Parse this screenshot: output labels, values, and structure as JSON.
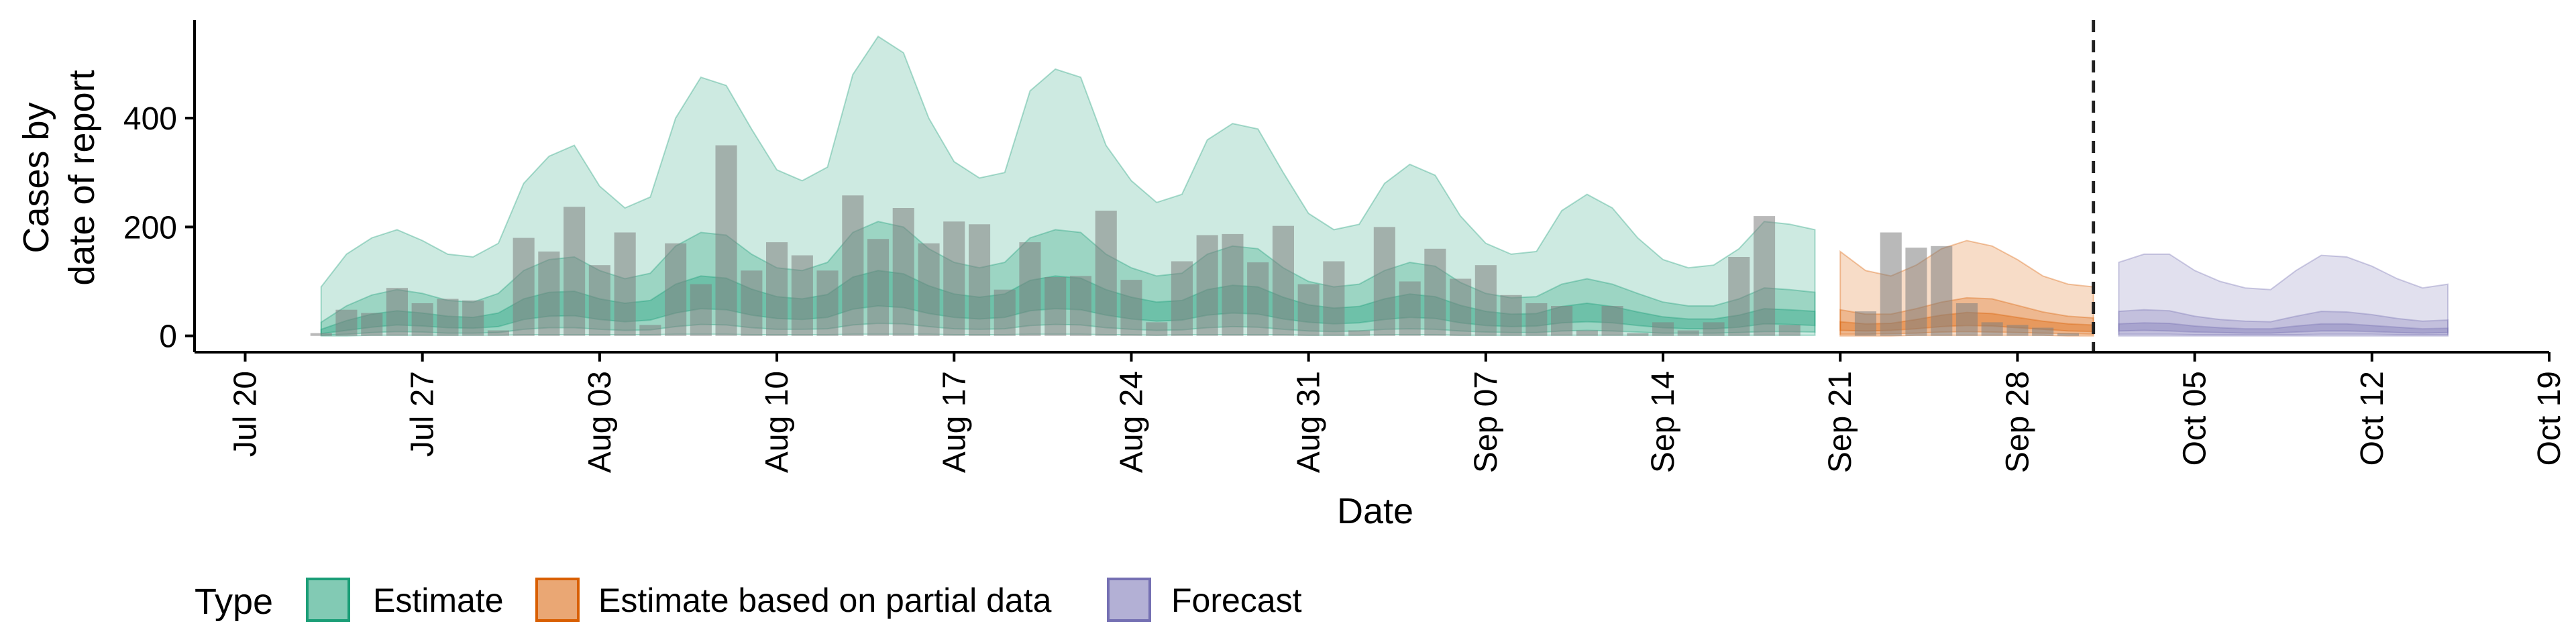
{
  "chart_data": {
    "type": "area",
    "xlabel": "Date",
    "ylabel_lines": [
      "Cases by",
      "date of report"
    ],
    "yticks": [
      0,
      200,
      400
    ],
    "ylim": [
      -30,
      580
    ],
    "xlim": [
      "2020-07-18",
      "2020-10-19"
    ],
    "xtick_dates": [
      "2020-07-20",
      "2020-07-27",
      "2020-08-03",
      "2020-08-10",
      "2020-08-17",
      "2020-08-24",
      "2020-08-31",
      "2020-09-07",
      "2020-09-14",
      "2020-09-21",
      "2020-09-28",
      "2020-10-05",
      "2020-10-12",
      "2020-10-19"
    ],
    "xtick_labels": [
      "Jul 20",
      "Jul 27",
      "Aug 03",
      "Aug 10",
      "Aug 17",
      "Aug 24",
      "Aug 31",
      "Sep 07",
      "Sep 14",
      "Sep 21",
      "Sep 28",
      "Oct 05",
      "Oct 12",
      "Oct 19"
    ],
    "vline_date": "2020-10-01",
    "legend": {
      "title": "Type",
      "position": "bottom"
    },
    "observed": {
      "color": "#808080",
      "dates": [
        "2020-07-23",
        "2020-07-24",
        "2020-07-25",
        "2020-07-26",
        "2020-07-27",
        "2020-07-28",
        "2020-07-29",
        "2020-07-30",
        "2020-07-31",
        "2020-08-01",
        "2020-08-02",
        "2020-08-03",
        "2020-08-04",
        "2020-08-05",
        "2020-08-06",
        "2020-08-07",
        "2020-08-08",
        "2020-08-09",
        "2020-08-10",
        "2020-08-11",
        "2020-08-12",
        "2020-08-13",
        "2020-08-14",
        "2020-08-15",
        "2020-08-16",
        "2020-08-17",
        "2020-08-18",
        "2020-08-19",
        "2020-08-20",
        "2020-08-21",
        "2020-08-22",
        "2020-08-23",
        "2020-08-24",
        "2020-08-25",
        "2020-08-26",
        "2020-08-27",
        "2020-08-28",
        "2020-08-29",
        "2020-08-30",
        "2020-08-31",
        "2020-09-01",
        "2020-09-02",
        "2020-09-03",
        "2020-09-04",
        "2020-09-05",
        "2020-09-06",
        "2020-09-07",
        "2020-09-08",
        "2020-09-09",
        "2020-09-10",
        "2020-09-11",
        "2020-09-12",
        "2020-09-13",
        "2020-09-14",
        "2020-09-15",
        "2020-09-16",
        "2020-09-17",
        "2020-09-18",
        "2020-09-19",
        "2020-09-20",
        "2020-09-21",
        "2020-09-22",
        "2020-09-23",
        "2020-09-24",
        "2020-09-25",
        "2020-09-26",
        "2020-09-27",
        "2020-09-28",
        "2020-09-29",
        "2020-09-30"
      ],
      "values": [
        5,
        48,
        42,
        88,
        60,
        68,
        65,
        10,
        180,
        155,
        237,
        130,
        190,
        20,
        170,
        95,
        350,
        120,
        172,
        148,
        120,
        258,
        178,
        235,
        170,
        210,
        205,
        85,
        172,
        108,
        110,
        230,
        103,
        25,
        137,
        185,
        187,
        135,
        202,
        95,
        137,
        10,
        200,
        100,
        160,
        105,
        130,
        75,
        60,
        55,
        10,
        55,
        5,
        25,
        10,
        25,
        145,
        220,
        20,
        0,
        0,
        45,
        190,
        162,
        165,
        60,
        25,
        20,
        15,
        5
      ]
    },
    "series": [
      {
        "name": "Estimate",
        "color": "#1B9E77",
        "dates": [
          "2020-07-23",
          "2020-07-24",
          "2020-07-25",
          "2020-07-26",
          "2020-07-27",
          "2020-07-28",
          "2020-07-29",
          "2020-07-30",
          "2020-07-31",
          "2020-08-01",
          "2020-08-02",
          "2020-08-03",
          "2020-08-04",
          "2020-08-05",
          "2020-08-06",
          "2020-08-07",
          "2020-08-08",
          "2020-08-09",
          "2020-08-10",
          "2020-08-11",
          "2020-08-12",
          "2020-08-13",
          "2020-08-14",
          "2020-08-15",
          "2020-08-16",
          "2020-08-17",
          "2020-08-18",
          "2020-08-19",
          "2020-08-20",
          "2020-08-21",
          "2020-08-22",
          "2020-08-23",
          "2020-08-24",
          "2020-08-25",
          "2020-08-26",
          "2020-08-27",
          "2020-08-28",
          "2020-08-29",
          "2020-08-30",
          "2020-08-31",
          "2020-09-01",
          "2020-09-02",
          "2020-09-03",
          "2020-09-04",
          "2020-09-05",
          "2020-09-06",
          "2020-09-07",
          "2020-09-08",
          "2020-09-09",
          "2020-09-10",
          "2020-09-11",
          "2020-09-12",
          "2020-09-13",
          "2020-09-14",
          "2020-09-15",
          "2020-09-16",
          "2020-09-17",
          "2020-09-18",
          "2020-09-19",
          "2020-09-20"
        ],
        "upper90": [
          90,
          150,
          180,
          195,
          175,
          150,
          145,
          170,
          280,
          330,
          350,
          275,
          235,
          255,
          400,
          475,
          460,
          380,
          305,
          285,
          310,
          480,
          550,
          520,
          400,
          320,
          290,
          300,
          450,
          490,
          475,
          350,
          285,
          245,
          260,
          360,
          390,
          380,
          300,
          225,
          195,
          205,
          280,
          315,
          295,
          220,
          170,
          150,
          155,
          230,
          260,
          235,
          180,
          140,
          125,
          130,
          160,
          210,
          205,
          195
        ],
        "upper50": [
          25,
          55,
          75,
          85,
          78,
          65,
          62,
          78,
          120,
          140,
          145,
          120,
          105,
          115,
          165,
          190,
          185,
          150,
          125,
          120,
          135,
          190,
          210,
          200,
          160,
          135,
          125,
          135,
          180,
          195,
          190,
          150,
          125,
          110,
          115,
          150,
          165,
          160,
          125,
          100,
          90,
          95,
          120,
          135,
          128,
          98,
          78,
          70,
          72,
          95,
          105,
          95,
          78,
          62,
          55,
          55,
          68,
          88,
          85,
          80
        ],
        "upper20": [
          12,
          28,
          40,
          46,
          42,
          36,
          34,
          42,
          68,
          80,
          82,
          68,
          60,
          65,
          95,
          110,
          106,
          86,
          72,
          68,
          76,
          108,
          120,
          114,
          92,
          77,
          71,
          77,
          102,
          110,
          106,
          85,
          71,
          62,
          65,
          85,
          93,
          90,
          71,
          57,
          51,
          54,
          68,
          77,
          72,
          56,
          45,
          40,
          41,
          54,
          60,
          54,
          44,
          35,
          31,
          31,
          38,
          50,
          48,
          45
        ],
        "lower20": [
          4,
          10,
          16,
          20,
          18,
          15,
          14,
          17,
          30,
          36,
          37,
          30,
          26,
          29,
          42,
          50,
          48,
          38,
          32,
          30,
          34,
          49,
          55,
          52,
          41,
          34,
          31,
          34,
          46,
          50,
          48,
          38,
          31,
          27,
          29,
          38,
          42,
          40,
          31,
          25,
          22,
          24,
          30,
          34,
          32,
          24,
          19,
          17,
          18,
          24,
          26,
          24,
          19,
          15,
          13,
          13,
          16,
          22,
          21,
          19
        ],
        "lower50": [
          1,
          3,
          6,
          8,
          7,
          5,
          5,
          6,
          12,
          15,
          15,
          12,
          10,
          11,
          17,
          21,
          20,
          15,
          12,
          12,
          13,
          20,
          23,
          22,
          17,
          13,
          12,
          13,
          19,
          21,
          20,
          15,
          12,
          10,
          11,
          15,
          17,
          16,
          12,
          9,
          8,
          9,
          12,
          13,
          12,
          9,
          7,
          6,
          6,
          9,
          10,
          9,
          7,
          5,
          5,
          5,
          6,
          8,
          8,
          7
        ],
        "lower90": [
          0,
          0,
          1,
          1,
          1,
          1,
          1,
          1,
          2,
          2,
          2,
          2,
          2,
          2,
          3,
          3,
          3,
          2,
          2,
          2,
          2,
          3,
          3,
          3,
          3,
          2,
          2,
          2,
          3,
          3,
          3,
          2,
          2,
          1,
          2,
          2,
          2,
          2,
          2,
          1,
          1,
          1,
          2,
          2,
          2,
          1,
          1,
          1,
          1,
          1,
          1,
          1,
          1,
          1,
          1,
          1,
          1,
          1,
          1,
          1
        ]
      },
      {
        "name": "Estimate based on partial data",
        "color": "#D95F02",
        "dates": [
          "2020-09-21",
          "2020-09-22",
          "2020-09-23",
          "2020-09-24",
          "2020-09-25",
          "2020-09-26",
          "2020-09-27",
          "2020-09-28",
          "2020-09-29",
          "2020-09-30",
          "2020-10-01"
        ],
        "upper90": [
          155,
          120,
          110,
          130,
          160,
          175,
          165,
          140,
          110,
          95,
          90
        ],
        "upper50": [
          48,
          40,
          40,
          50,
          62,
          70,
          68,
          56,
          44,
          36,
          33
        ],
        "upper20": [
          26,
          22,
          23,
          30,
          38,
          43,
          41,
          34,
          27,
          22,
          20
        ],
        "lower20": [
          10,
          9,
          10,
          13,
          17,
          19,
          18,
          15,
          12,
          9,
          8
        ],
        "lower50": [
          3,
          3,
          4,
          5,
          7,
          8,
          7,
          6,
          5,
          4,
          3
        ],
        "lower90": [
          0,
          0,
          0,
          1,
          1,
          1,
          1,
          1,
          1,
          0,
          0
        ]
      },
      {
        "name": "Forecast",
        "color": "#7570B3",
        "dates": [
          "2020-10-02",
          "2020-10-03",
          "2020-10-04",
          "2020-10-05",
          "2020-10-06",
          "2020-10-07",
          "2020-10-08",
          "2020-10-09",
          "2020-10-10",
          "2020-10-11",
          "2020-10-12",
          "2020-10-13",
          "2020-10-14",
          "2020-10-15"
        ],
        "upper90": [
          135,
          150,
          150,
          120,
          100,
          88,
          85,
          120,
          148,
          145,
          128,
          105,
          88,
          95
        ],
        "upper50": [
          45,
          48,
          46,
          36,
          30,
          27,
          26,
          36,
          45,
          44,
          39,
          32,
          27,
          29
        ],
        "upper20": [
          22,
          24,
          23,
          18,
          15,
          13,
          13,
          18,
          22,
          22,
          19,
          16,
          13,
          14
        ],
        "lower20": [
          9,
          10,
          9,
          7,
          6,
          5,
          5,
          7,
          9,
          9,
          8,
          6,
          5,
          6
        ],
        "lower50": [
          3,
          3,
          3,
          2,
          2,
          2,
          2,
          2,
          3,
          3,
          3,
          2,
          2,
          2
        ],
        "lower90": [
          0,
          0,
          0,
          0,
          0,
          0,
          0,
          0,
          0,
          0,
          0,
          0,
          0,
          0
        ]
      }
    ]
  }
}
